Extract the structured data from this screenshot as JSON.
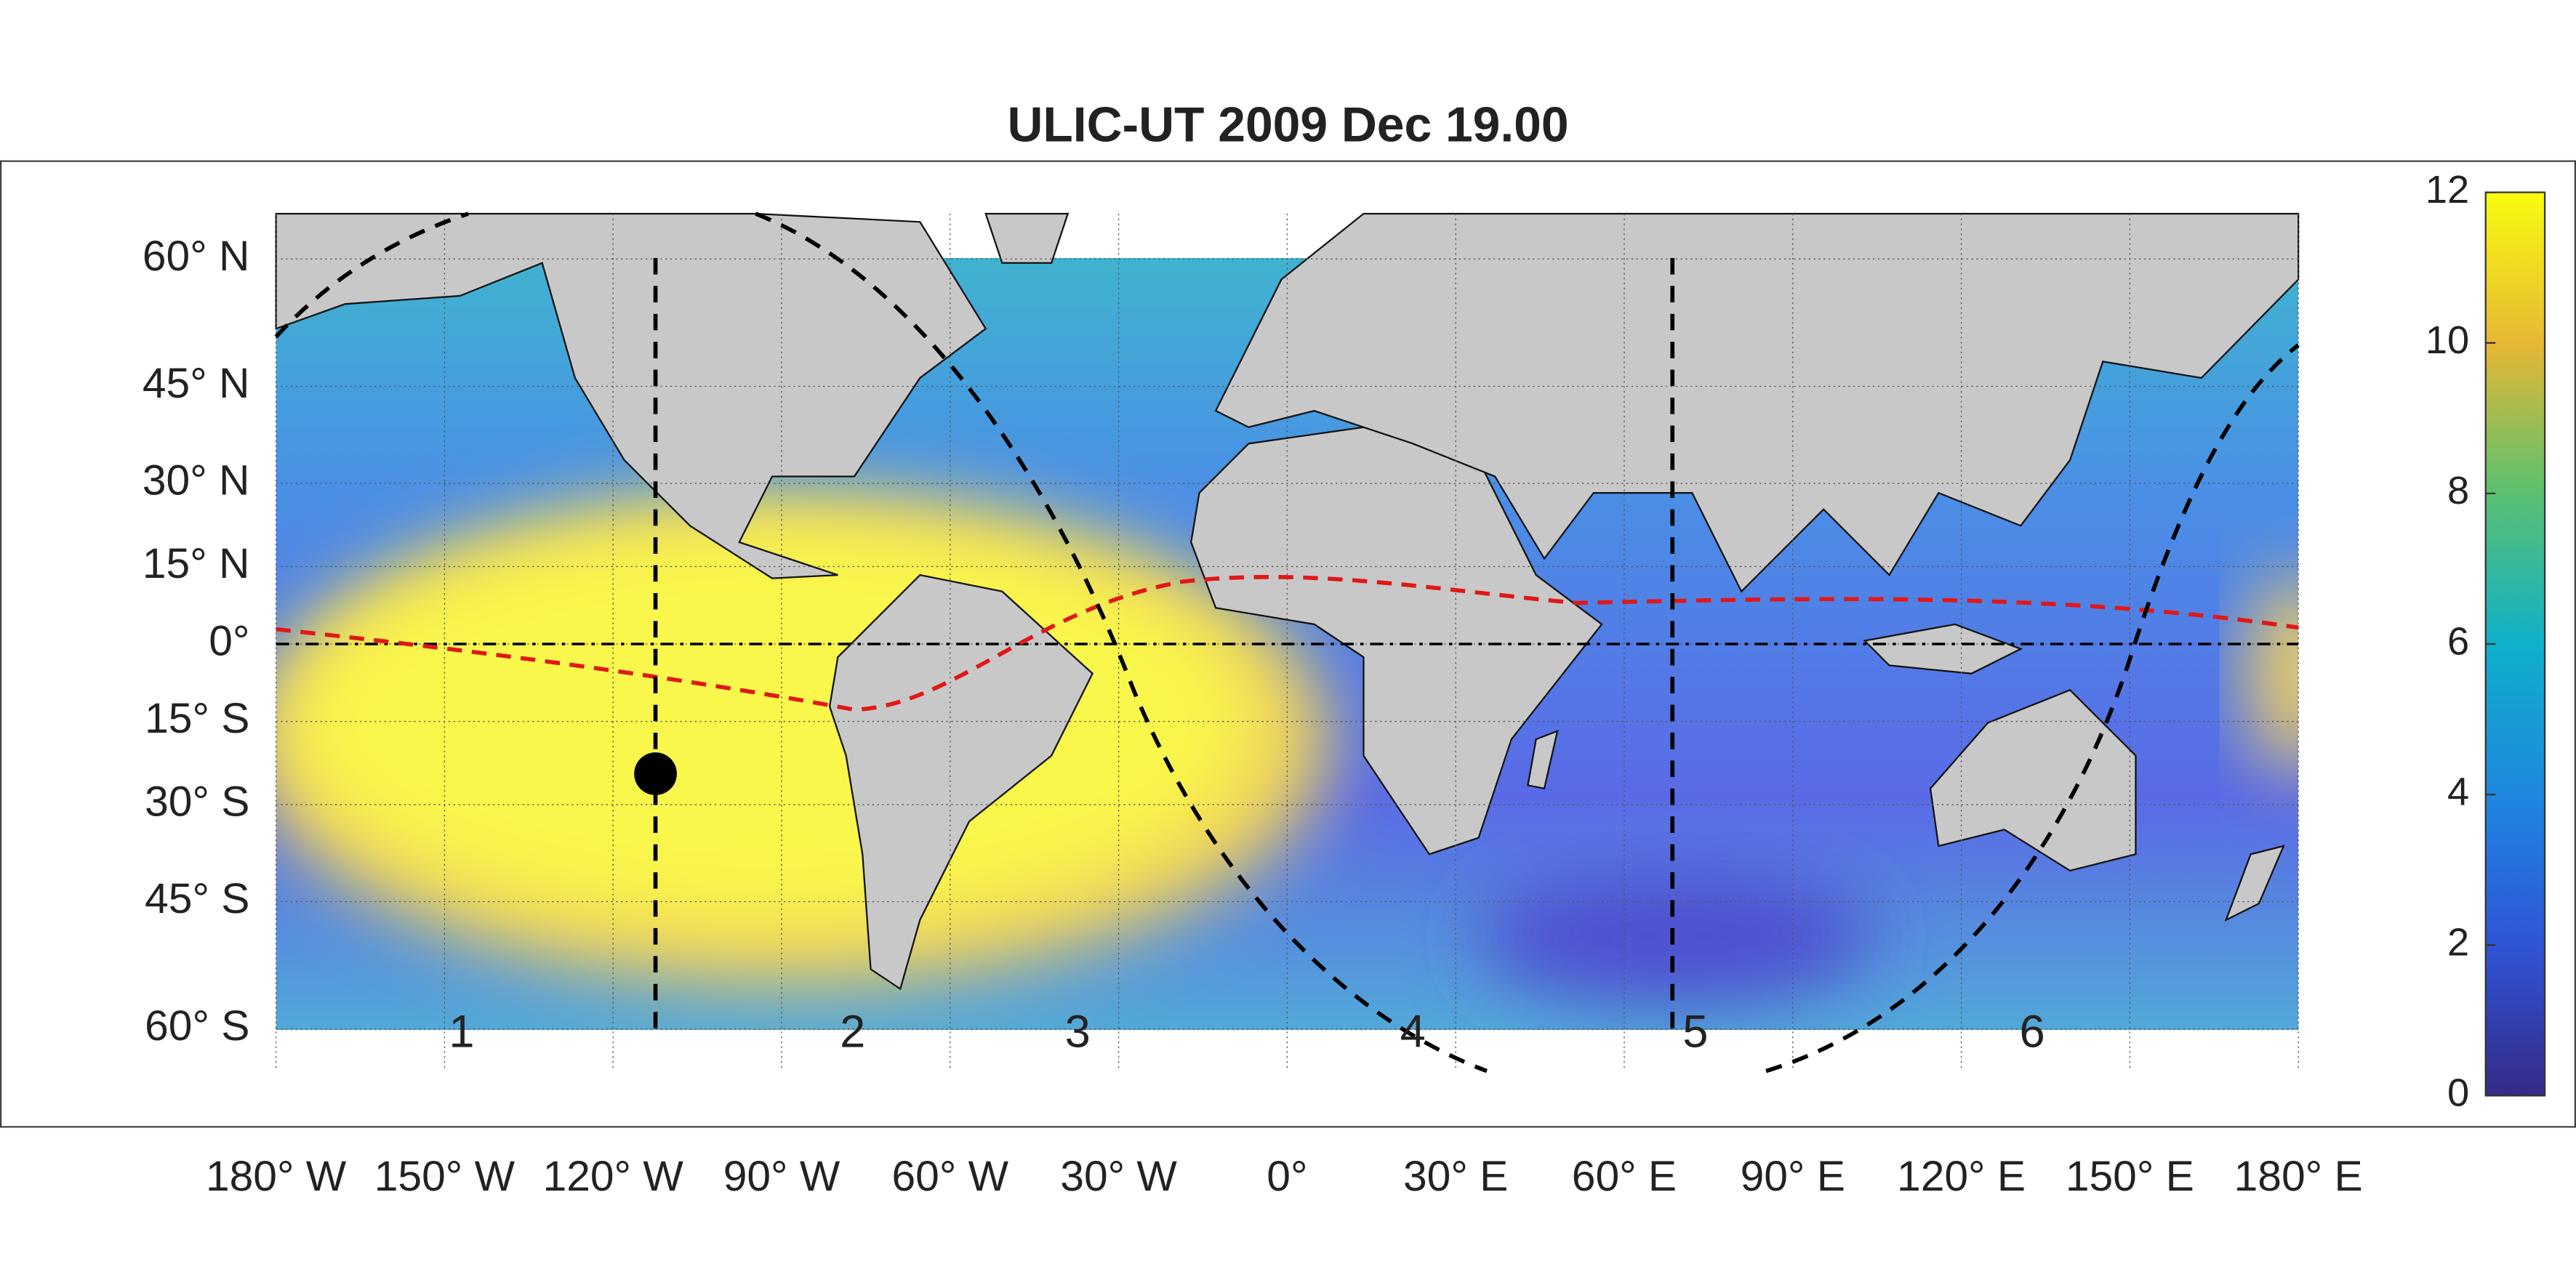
{
  "title": "ULIC-UT 2009 Dec 19.00",
  "lon_ticks": [
    {
      "value": -180,
      "label": "180° W"
    },
    {
      "value": -150,
      "label": "150° W"
    },
    {
      "value": -120,
      "label": "120° W"
    },
    {
      "value": -90,
      "label": "90° W"
    },
    {
      "value": -60,
      "label": "60° W"
    },
    {
      "value": -30,
      "label": "30° W"
    },
    {
      "value": 0,
      "label": "0°"
    },
    {
      "value": 30,
      "label": "30° E"
    },
    {
      "value": 60,
      "label": "60° E"
    },
    {
      "value": 90,
      "label": "90° E"
    },
    {
      "value": 120,
      "label": "120° E"
    },
    {
      "value": 150,
      "label": "150° E"
    },
    {
      "value": 180,
      "label": "180° E"
    }
  ],
  "lat_ticks": [
    {
      "value": 60,
      "label": "60° N"
    },
    {
      "value": 45,
      "label": "45° N"
    },
    {
      "value": 30,
      "label": "30° N"
    },
    {
      "value": 15,
      "label": "15° N"
    },
    {
      "value": 0,
      "label": "0°"
    },
    {
      "value": -15,
      "label": "15° S"
    },
    {
      "value": -30,
      "label": "30° S"
    },
    {
      "value": -45,
      "label": "45° S"
    },
    {
      "value": -60,
      "label": "60° S"
    }
  ],
  "colorbar": {
    "lim": [
      0,
      12
    ],
    "ticks": [
      0,
      2,
      4,
      6,
      8,
      10,
      12
    ]
  },
  "sectors": [
    "1",
    "2",
    "3",
    "4",
    "5",
    "6"
  ]
}
